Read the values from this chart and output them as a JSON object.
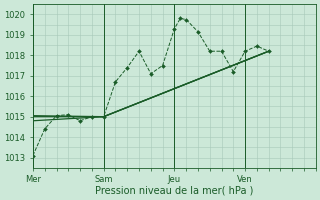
{
  "title": "Pression niveau de la mer( hPa )",
  "bg_color": "#cce8d8",
  "grid_color": "#a8c8b8",
  "line_color": "#1a5c28",
  "ylim": [
    1012.5,
    1020.5
  ],
  "yticks": [
    1013,
    1014,
    1015,
    1016,
    1017,
    1018,
    1019,
    1020
  ],
  "xtick_labels": [
    "Mer",
    "Sam",
    "Jeu",
    "Ven"
  ],
  "xtick_positions": [
    0,
    36,
    72,
    108
  ],
  "xlim": [
    0,
    144
  ],
  "vline_positions": [
    0,
    36,
    72,
    108
  ],
  "series1_x": [
    0,
    6,
    12,
    18,
    24,
    30,
    36,
    42,
    48,
    54,
    60,
    66,
    72,
    75,
    78,
    84,
    90,
    96,
    102,
    108,
    114,
    120
  ],
  "series1_y": [
    1013.1,
    1014.4,
    1015.05,
    1015.1,
    1014.8,
    1015.0,
    1015.0,
    1016.7,
    1017.4,
    1018.2,
    1017.1,
    1017.5,
    1019.3,
    1019.8,
    1019.75,
    1019.15,
    1018.2,
    1018.2,
    1017.2,
    1018.2,
    1018.45,
    1018.2
  ],
  "series2_x": [
    0,
    36,
    120
  ],
  "series2_y": [
    1015.0,
    1015.0,
    1018.2
  ],
  "series3_x": [
    0,
    36,
    120
  ],
  "series3_y": [
    1014.8,
    1015.0,
    1018.2
  ],
  "series4_x": [
    0,
    36,
    120
  ],
  "series4_y": [
    1015.05,
    1015.0,
    1018.2
  ],
  "ylabel_fontsize": 7,
  "tick_fontsize": 6
}
